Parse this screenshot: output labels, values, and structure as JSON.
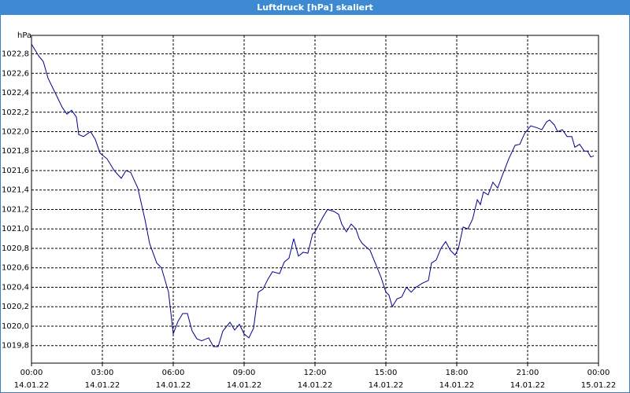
{
  "chart_data": {
    "type": "line",
    "title": "Luftdruck [hPa] skaliert",
    "y_unit": "hPa",
    "x": [
      0.0,
      0.3,
      0.5,
      0.7,
      1.0,
      1.3,
      1.5,
      1.7,
      1.9,
      2.0,
      2.2,
      2.5,
      2.7,
      2.9,
      3.2,
      3.5,
      3.8,
      4.0,
      4.2,
      4.5,
      4.8,
      5.0,
      5.3,
      5.5,
      5.8,
      6.0,
      6.2,
      6.4,
      6.6,
      6.8,
      7.0,
      7.2,
      7.5,
      7.7,
      7.9,
      8.1,
      8.4,
      8.6,
      8.8,
      9.0,
      9.2,
      9.4,
      9.6,
      9.8,
      10.0,
      10.2,
      10.5,
      10.7,
      10.9,
      11.1,
      11.3,
      11.5,
      11.7,
      11.9,
      12.0,
      12.33,
      12.53,
      12.8,
      13.0,
      13.13,
      13.33,
      13.53,
      13.73,
      13.87,
      14.0,
      14.33,
      14.6,
      14.8,
      15.0,
      15.13,
      15.27,
      15.47,
      15.67,
      15.87,
      16.07,
      16.27,
      16.53,
      16.8,
      16.93,
      17.13,
      17.33,
      17.53,
      17.73,
      17.93,
      18.07,
      18.27,
      18.47,
      18.67,
      18.87,
      19.0,
      19.13,
      19.33,
      19.53,
      19.73,
      19.93,
      20.2,
      20.47,
      20.67,
      20.87,
      21.13,
      21.4,
      21.6,
      21.8,
      21.93,
      22.13,
      22.27,
      22.47,
      22.67,
      22.87,
      23.0,
      23.2,
      23.4,
      23.53,
      23.67,
      23.8
    ],
    "values": [
      1022.9,
      1022.78,
      1022.72,
      1022.55,
      1022.4,
      1022.25,
      1022.18,
      1022.22,
      1022.15,
      1021.97,
      1021.95,
      1022.0,
      1021.92,
      1021.78,
      1021.72,
      1021.6,
      1021.52,
      1021.6,
      1021.58,
      1021.42,
      1021.1,
      1020.85,
      1020.65,
      1020.6,
      1020.35,
      1019.92,
      1020.05,
      1020.13,
      1020.13,
      1019.95,
      1019.87,
      1019.85,
      1019.88,
      1019.79,
      1019.79,
      1019.95,
      1020.04,
      1019.96,
      1020.02,
      1019.92,
      1019.88,
      1019.98,
      1020.35,
      1020.38,
      1020.48,
      1020.56,
      1020.54,
      1020.66,
      1020.7,
      1020.9,
      1020.72,
      1020.76,
      1020.75,
      1020.95,
      1020.97,
      1021.12,
      1021.2,
      1021.18,
      1021.15,
      1021.05,
      1020.97,
      1021.05,
      1021.0,
      1020.9,
      1020.85,
      1020.78,
      1020.62,
      1020.5,
      1020.35,
      1020.32,
      1020.2,
      1020.28,
      1020.3,
      1020.4,
      1020.35,
      1020.4,
      1020.44,
      1020.47,
      1020.65,
      1020.68,
      1020.8,
      1020.87,
      1020.78,
      1020.73,
      1020.8,
      1021.02,
      1021.0,
      1021.1,
      1021.3,
      1021.25,
      1021.38,
      1021.35,
      1021.48,
      1021.42,
      1021.55,
      1021.72,
      1021.86,
      1021.87,
      1021.98,
      1022.06,
      1022.04,
      1022.02,
      1022.1,
      1022.12,
      1022.07,
      1022.0,
      1022.02,
      1021.95,
      1021.95,
      1021.84,
      1021.87,
      1021.8,
      1021.8,
      1021.74,
      1021.75
    ],
    "color": "#00008b",
    "xlim": [
      0,
      24
    ],
    "xticks": [
      {
        "value": 0,
        "label": "00:00",
        "date": "14.01.22"
      },
      {
        "value": 3,
        "label": "03:00",
        "date": "14.01.22"
      },
      {
        "value": 6,
        "label": "06:00",
        "date": "14.01.22"
      },
      {
        "value": 9,
        "label": "09:00",
        "date": "14.01.22"
      },
      {
        "value": 12,
        "label": "12:00",
        "date": "14.01.22"
      },
      {
        "value": 15,
        "label": "15:00",
        "date": "14.01.22"
      },
      {
        "value": 18,
        "label": "18:00",
        "date": "14.01.22"
      },
      {
        "value": 21,
        "label": "21:00",
        "date": "14.01.22"
      },
      {
        "value": 24,
        "label": "00:00",
        "date": "15.01.22"
      }
    ],
    "ylim": [
      1019.62,
      1022.99
    ],
    "yticks": [
      {
        "value": 1019.8,
        "label": "1019,8"
      },
      {
        "value": 1020,
        "label": "1020,0"
      },
      {
        "value": 1020.2,
        "label": "1020,2"
      },
      {
        "value": 1020.4,
        "label": "1020,4"
      },
      {
        "value": 1020.6,
        "label": "1020,6"
      },
      {
        "value": 1020.8,
        "label": "1020,8"
      },
      {
        "value": 1021,
        "label": "1021,0"
      },
      {
        "value": 1021.2,
        "label": "1021,2"
      },
      {
        "value": 1021.4,
        "label": "1021,4"
      },
      {
        "value": 1021.6,
        "label": "1021,6"
      },
      {
        "value": 1021.8,
        "label": "1021,8"
      },
      {
        "value": 1022,
        "label": "1022,0"
      },
      {
        "value": 1022.2,
        "label": "1022,2"
      },
      {
        "value": 1022.4,
        "label": "1022,4"
      },
      {
        "value": 1022.6,
        "label": "1022,6"
      },
      {
        "value": 1022.8,
        "label": "1022,8"
      }
    ],
    "grid": true
  }
}
